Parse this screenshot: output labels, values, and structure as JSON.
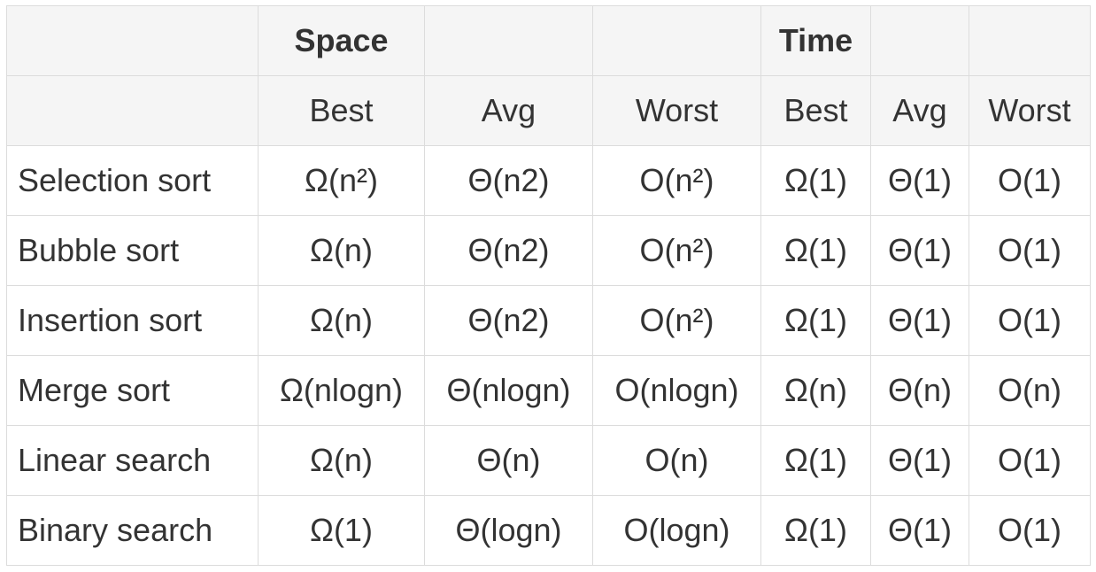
{
  "table": {
    "group_headers": [
      "",
      "Space",
      "",
      "",
      "Time",
      "",
      ""
    ],
    "sub_headers": [
      "",
      "Best",
      "Avg",
      "Worst",
      "Best",
      "Avg",
      "Worst"
    ],
    "rows": [
      {
        "name": "Selection sort",
        "cells": [
          "Ω(n²)",
          "Θ(n2)",
          "O(n²)",
          "Ω(1)",
          "Θ(1)",
          "O(1)"
        ]
      },
      {
        "name": "Bubble sort",
        "cells": [
          "Ω(n)",
          "Θ(n2)",
          "O(n²)",
          "Ω(1)",
          "Θ(1)",
          "O(1)"
        ]
      },
      {
        "name": "Insertion sort",
        "cells": [
          "Ω(n)",
          "Θ(n2)",
          "O(n²)",
          "Ω(1)",
          "Θ(1)",
          "O(1)"
        ]
      },
      {
        "name": "Merge sort",
        "cells": [
          "Ω(nlogn)",
          "Θ(nlogn)",
          "O(nlogn)",
          "Ω(n)",
          "Θ(n)",
          "O(n)"
        ]
      },
      {
        "name": "Linear search",
        "cells": [
          "Ω(n)",
          "Θ(n)",
          "O(n)",
          "Ω(1)",
          "Θ(1)",
          "O(1)"
        ]
      },
      {
        "name": "Binary search",
        "cells": [
          "Ω(1)",
          "Θ(logn)",
          "O(logn)",
          "Ω(1)",
          "Θ(1)",
          "O(1)"
        ]
      }
    ]
  }
}
